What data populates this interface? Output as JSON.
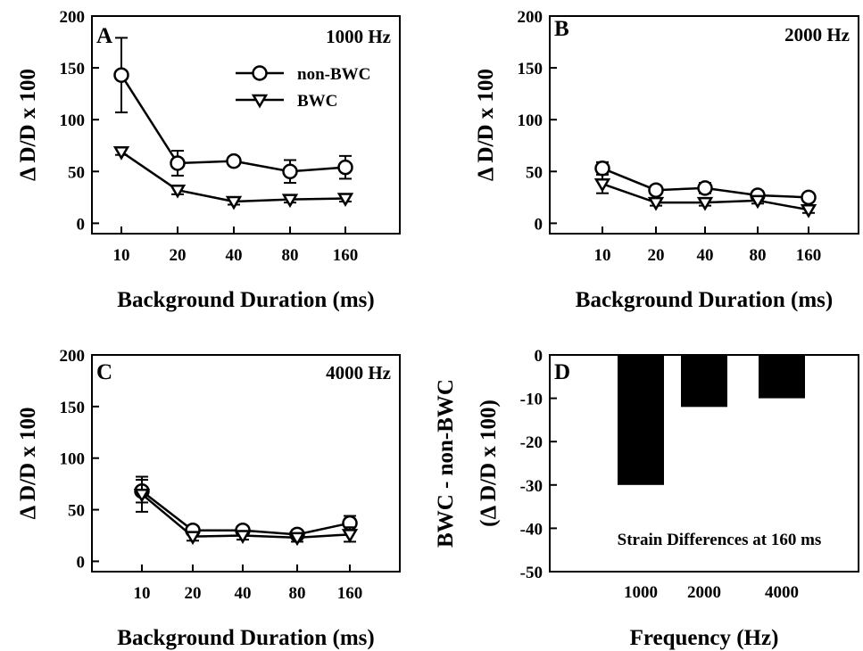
{
  "chart_data": [
    {
      "panel": "A",
      "type": "line",
      "annotation": "1000 Hz",
      "categories": [
        "10",
        "20",
        "40",
        "80",
        "160"
      ],
      "xlabel": "Background Duration (ms)",
      "ylabel": "Δ D/D x 100",
      "ylim": [
        -10,
        200
      ],
      "yticks": [
        0,
        50,
        100,
        150,
        200
      ],
      "legend_position": "top-right",
      "series": [
        {
          "name": "non-BWC",
          "marker": "circle",
          "values": [
            143,
            58,
            60,
            50,
            54
          ],
          "errors": [
            36,
            12,
            4,
            11,
            11
          ]
        },
        {
          "name": "BWC",
          "marker": "triangle-down",
          "values": [
            69,
            32,
            21,
            23,
            24
          ],
          "errors": [
            3,
            4,
            3,
            3,
            3
          ]
        }
      ]
    },
    {
      "panel": "B",
      "type": "line",
      "annotation": "2000 Hz",
      "categories": [
        "10",
        "20",
        "40",
        "80",
        "160"
      ],
      "xlabel": "Background Duration (ms)",
      "ylabel": "Δ D/D x 100",
      "ylim": [
        -10,
        200
      ],
      "yticks": [
        0,
        50,
        100,
        150,
        200
      ],
      "series": [
        {
          "marker": "circle",
          "values": [
            53,
            32,
            34,
            27,
            25
          ],
          "errors": [
            6,
            4,
            5,
            4,
            3
          ]
        },
        {
          "marker": "triangle-down",
          "values": [
            38,
            20,
            20,
            22,
            13
          ],
          "errors": [
            9,
            3,
            3,
            3,
            3
          ]
        }
      ]
    },
    {
      "panel": "C",
      "type": "line",
      "annotation": "4000 Hz",
      "categories": [
        "10",
        "20",
        "40",
        "80",
        "160"
      ],
      "xlabel": "Background Duration (ms)",
      "ylabel": "Δ D/D x 100",
      "ylim": [
        -10,
        200
      ],
      "yticks": [
        0,
        50,
        100,
        150,
        200
      ],
      "series": [
        {
          "marker": "circle",
          "values": [
            68,
            30,
            30,
            26,
            37
          ],
          "errors": [
            11,
            4,
            4,
            4,
            7
          ]
        },
        {
          "marker": "triangle-down",
          "values": [
            65,
            24,
            25,
            23,
            26
          ],
          "errors": [
            17,
            4,
            4,
            4,
            7
          ]
        }
      ]
    },
    {
      "panel": "D",
      "type": "bar",
      "categories": [
        "1000",
        "2000",
        "4000"
      ],
      "values": [
        -30,
        -12,
        -10
      ],
      "xlabel": "Frequency (Hz)",
      "ylabel": [
        "BWC - non-BWC",
        "(Δ D/D x 100)"
      ],
      "ylim": [
        -50,
        0
      ],
      "yticks": [
        0,
        -10,
        -20,
        -30,
        -40,
        -50
      ],
      "annotation": "Strain Differences at 160 ms",
      "bar_color": "#000000"
    }
  ]
}
